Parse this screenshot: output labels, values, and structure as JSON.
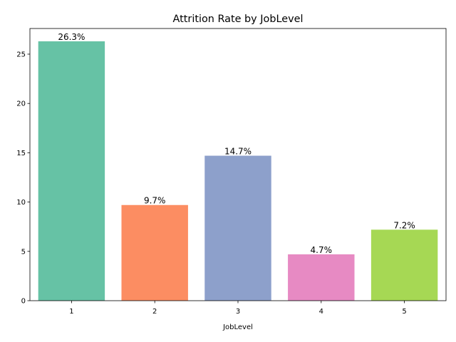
{
  "chart_data": {
    "type": "bar",
    "title": "Attrition Rate by JobLevel",
    "xlabel": "JobLevel",
    "ylabel": "",
    "categories": [
      "1",
      "2",
      "3",
      "4",
      "5"
    ],
    "values": [
      26.3,
      9.7,
      14.7,
      4.7,
      7.2
    ],
    "data_labels": [
      "26.3%",
      "9.7%",
      "14.7%",
      "4.7%",
      "7.2%"
    ],
    "colors": [
      "#66c2a5",
      "#fc8d62",
      "#8da0cb",
      "#e78ac3",
      "#a6d854"
    ],
    "ylim": [
      0,
      27.6
    ],
    "yticks": [
      0,
      5,
      10,
      15,
      20,
      25
    ],
    "grid": false,
    "legend": "none"
  }
}
